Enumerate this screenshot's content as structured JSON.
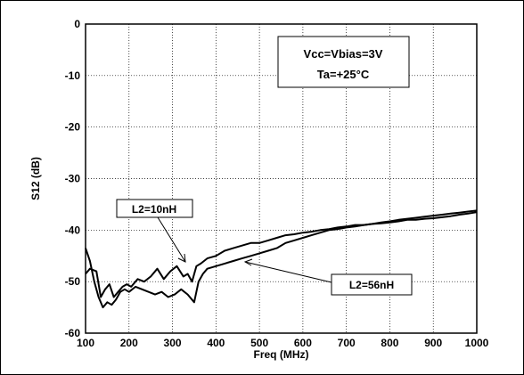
{
  "chart_data": {
    "type": "line",
    "title": "",
    "xlabel": "Freq (MHz)",
    "ylabel": "S12 (dB)",
    "xlim": [
      100,
      1000
    ],
    "ylim": [
      -60,
      0
    ],
    "xticks": [
      100,
      200,
      300,
      400,
      500,
      600,
      700,
      800,
      900,
      1000
    ],
    "yticks": [
      0,
      -10,
      -20,
      -30,
      -40,
      -50,
      -60
    ],
    "grid": true,
    "grid_style": "dotted",
    "annotation": [
      "Vcc=Vbias=3V",
      "Ta=+25°C"
    ],
    "series": [
      {
        "name": "L2=10nH",
        "color": "#000000",
        "x": [
          100,
          110,
          125,
          135,
          145,
          155,
          165,
          175,
          185,
          195,
          205,
          220,
          235,
          250,
          265,
          280,
          295,
          310,
          325,
          335,
          345,
          355,
          365,
          380,
          400,
          420,
          440,
          460,
          480,
          500,
          520,
          540,
          560,
          580,
          600,
          620,
          640,
          660,
          680,
          700,
          720,
          740,
          760,
          780,
          800,
          820,
          840,
          860,
          880,
          900,
          920,
          940,
          960,
          980,
          1000
        ],
        "y": [
          -48.5,
          -47.5,
          -48,
          -53,
          -51.5,
          -50.5,
          -53,
          -52,
          -51,
          -50.5,
          -51,
          -49.5,
          -50,
          -49,
          -47.5,
          -49.5,
          -48,
          -47,
          -49,
          -48.5,
          -50,
          -47,
          -46.5,
          -45.5,
          -45,
          -44,
          -43.5,
          -43,
          -42.5,
          -42.5,
          -42,
          -41.5,
          -41,
          -40.8,
          -40.5,
          -40.3,
          -40,
          -39.8,
          -39.5,
          -39.3,
          -39,
          -39,
          -38.8,
          -38.7,
          -38.5,
          -38.3,
          -38,
          -38,
          -37.8,
          -37.7,
          -37.5,
          -37.3,
          -37,
          -36.8,
          -36.5
        ]
      },
      {
        "name": "L2=56nH",
        "color": "#000000",
        "x": [
          100,
          110,
          120,
          130,
          140,
          150,
          160,
          170,
          180,
          190,
          200,
          215,
          230,
          245,
          260,
          275,
          290,
          305,
          320,
          335,
          350,
          360,
          370,
          380,
          400,
          420,
          440,
          460,
          480,
          500,
          520,
          540,
          560,
          580,
          600,
          620,
          640,
          660,
          680,
          700,
          720,
          740,
          760,
          780,
          800,
          820,
          840,
          860,
          880,
          900,
          920,
          940,
          960,
          980,
          1000
        ],
        "y": [
          -43.5,
          -46,
          -50,
          -53,
          -55,
          -54,
          -54.5,
          -53.5,
          -52,
          -51.5,
          -52,
          -51,
          -51.5,
          -52,
          -52.5,
          -52,
          -53,
          -52.5,
          -51.5,
          -52.5,
          -54,
          -50,
          -48.5,
          -47.5,
          -47,
          -46.5,
          -46,
          -45.5,
          -45,
          -44.5,
          -44,
          -43.5,
          -42.5,
          -42,
          -41.5,
          -41,
          -40.5,
          -40,
          -39.8,
          -39.5,
          -39.3,
          -39,
          -38.8,
          -38.5,
          -38.3,
          -38,
          -37.8,
          -37.6,
          -37.4,
          -37.2,
          -37,
          -36.8,
          -36.6,
          -36.4,
          -36.2
        ]
      }
    ]
  },
  "callouts": {
    "l2_10": "L2=10nH",
    "l2_56": "L2=56nH"
  }
}
